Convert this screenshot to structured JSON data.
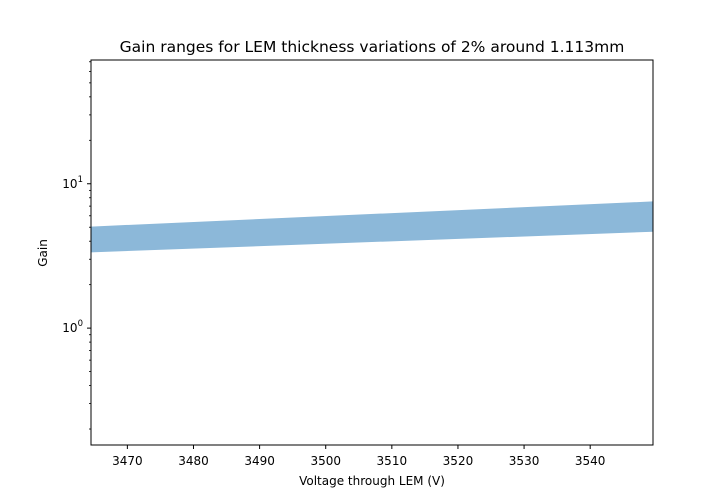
{
  "chart_data": {
    "type": "area",
    "title": "Gain ranges for LEM thickness variations of 2% around 1.113mm",
    "xlabel": "Voltage through LEM (V)",
    "ylabel": "Gain",
    "xlim": [
      3464.5,
      3549.5
    ],
    "ylim": [
      0.155,
      72
    ],
    "yscale": "log",
    "x_ticks": [
      {
        "value": 3470,
        "label": "3470"
      },
      {
        "value": 3480,
        "label": "3480"
      },
      {
        "value": 3490,
        "label": "3490"
      },
      {
        "value": 3500,
        "label": "3500"
      },
      {
        "value": 3510,
        "label": "3510"
      },
      {
        "value": 3520,
        "label": "3520"
      },
      {
        "value": 3530,
        "label": "3530"
      },
      {
        "value": 3540,
        "label": "3540"
      }
    ],
    "y_ticks": [
      {
        "value": 1,
        "base": "10",
        "exp": "0"
      },
      {
        "value": 10,
        "base": "10",
        "exp": "1"
      }
    ],
    "grid": false,
    "series": [
      {
        "x": [
          3464.5,
          3549.5
        ],
        "lower": [
          3.35,
          4.65
        ],
        "upper": [
          5.05,
          7.55
        ],
        "color": "#8cb8d9"
      }
    ]
  }
}
